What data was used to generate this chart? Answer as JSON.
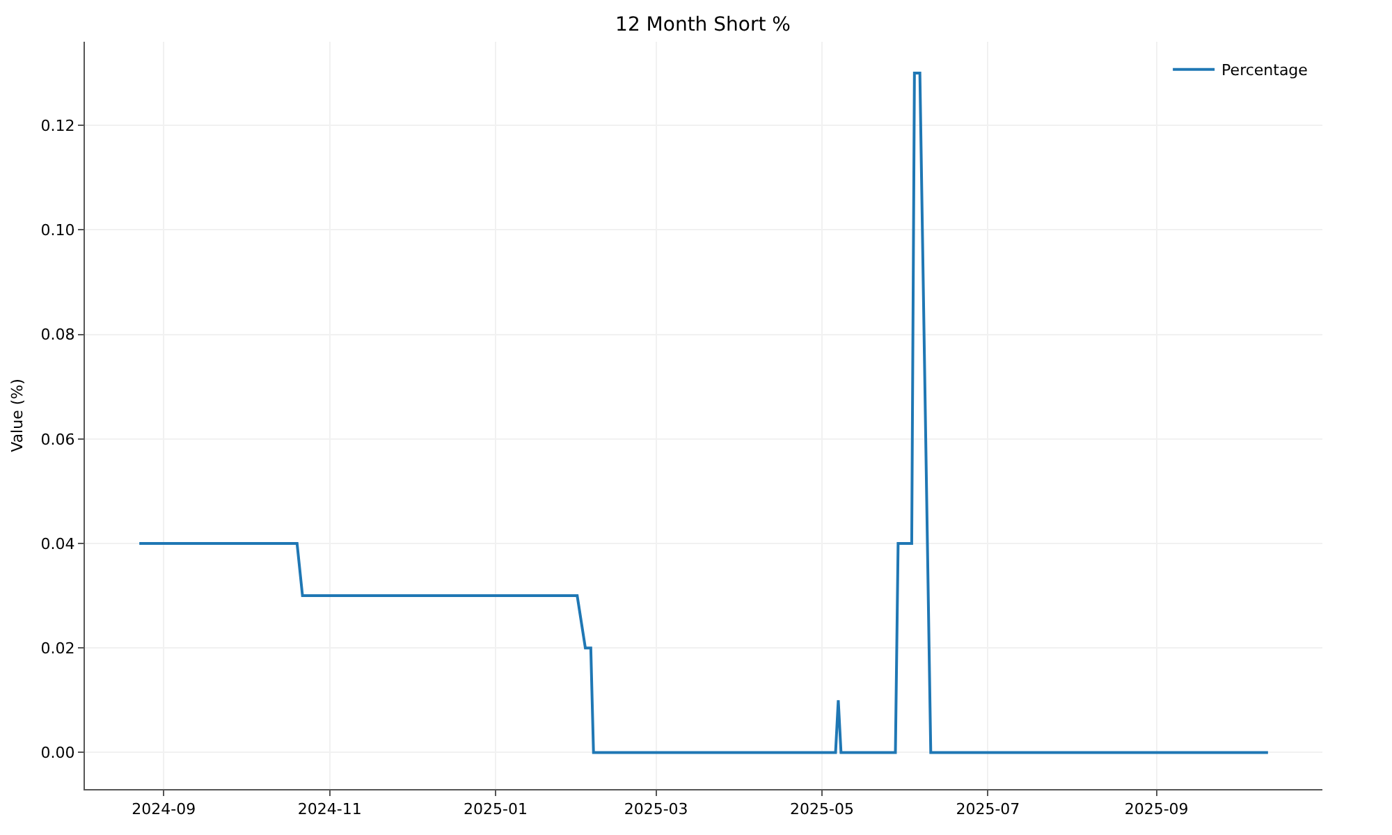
{
  "chart_data": {
    "type": "line",
    "title": "12 Month Short %",
    "ylabel": "Value (%)",
    "x": [
      "2024-08-23",
      "2024-10-20",
      "2024-10-22",
      "2025-01-31",
      "2025-02-03",
      "2025-02-05",
      "2025-02-06",
      "2025-05-06",
      "2025-05-07",
      "2025-05-08",
      "2025-05-28",
      "2025-05-29",
      "2025-06-03",
      "2025-06-04",
      "2025-06-06",
      "2025-06-10",
      "2025-10-12"
    ],
    "series": [
      {
        "name": "Percentage",
        "color": "#1f77b4",
        "values": [
          0.04,
          0.04,
          0.03,
          0.03,
          0.02,
          0.02,
          0,
          0,
          0.01,
          0,
          0,
          0.04,
          0.04,
          0.13,
          0.13,
          0,
          0
        ]
      }
    ],
    "xlim": [
      "2024-08-03",
      "2025-11-01"
    ],
    "xticks": [
      "2024-09",
      "2024-11",
      "2025-01",
      "2025-03",
      "2025-05",
      "2025-07",
      "2025-09"
    ],
    "ylim": [
      -0.007,
      0.136
    ],
    "yticks": [
      {
        "value": 0,
        "label": "0.00"
      },
      {
        "value": 0.02,
        "label": "0.02"
      },
      {
        "value": 0.04,
        "label": "0.04"
      },
      {
        "value": 0.06,
        "label": "0.06"
      },
      {
        "value": 0.08,
        "label": "0.08"
      },
      {
        "value": 0.1,
        "label": "0.10"
      },
      {
        "value": 0.12,
        "label": "0.12"
      }
    ],
    "grid": true,
    "legend": "top right",
    "line_style": "solid"
  }
}
